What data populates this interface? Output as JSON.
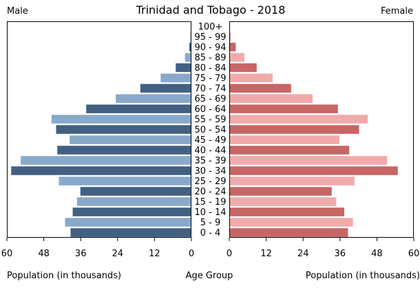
{
  "chart_data": {
    "type": "bar",
    "title": "Trinidad and Tobago - 2018",
    "left_label": "Male",
    "right_label": "Female",
    "xlabel_left": "Population (in thousands)",
    "xlabel_center": "Age Group",
    "xlabel_right": "Population (in thousands)",
    "xlim": [
      0,
      60
    ],
    "ticks": [
      0,
      12,
      24,
      36,
      48,
      60
    ],
    "colors": {
      "male_dark": "#426182",
      "male_light": "#89a9cb",
      "female_dark": "#c86565",
      "female_light": "#f0aaaa"
    },
    "categories": [
      "100+",
      "95 - 99",
      "90 - 94",
      "85 - 89",
      "80 - 84",
      "75 - 79",
      "70 - 74",
      "65 - 69",
      "60 - 64",
      "55 - 59",
      "50 - 54",
      "45 - 49",
      "40 - 44",
      "35 - 39",
      "30 - 34",
      "25 - 29",
      "20 - 24",
      "15 - 19",
      "10 - 14",
      "5 - 9",
      "0 - 4"
    ],
    "series": [
      {
        "name": "Male",
        "values": [
          0.1,
          0.3,
          0.7,
          2.1,
          5.1,
          10.0,
          16.6,
          24.6,
          34.2,
          45.5,
          44.0,
          39.6,
          43.6,
          55.5,
          58.6,
          43.1,
          36.1,
          37.2,
          38.6,
          41.1,
          39.3
        ]
      },
      {
        "name": "Female",
        "values": [
          0.2,
          0.5,
          2.1,
          4.9,
          8.9,
          14.1,
          20.1,
          27.1,
          35.3,
          45.0,
          42.2,
          35.8,
          39.0,
          51.3,
          54.8,
          40.7,
          33.3,
          34.8,
          37.4,
          40.2,
          38.6
        ]
      }
    ]
  }
}
